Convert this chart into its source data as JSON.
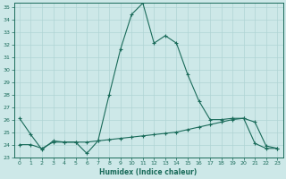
{
  "xlabel": "Humidex (Indice chaleur)",
  "x": [
    0,
    1,
    2,
    3,
    4,
    5,
    6,
    7,
    8,
    9,
    10,
    11,
    12,
    13,
    14,
    15,
    16,
    17,
    18,
    19,
    20,
    21,
    22,
    23
  ],
  "line1_y": [
    26.1,
    24.8,
    23.6,
    24.3,
    24.2,
    24.2,
    23.3,
    24.3,
    28.0,
    31.6,
    34.4,
    35.3,
    32.1,
    32.7,
    32.1,
    29.6,
    27.5,
    26.0,
    26.0,
    26.1,
    26.1,
    24.1,
    23.7,
    23.7
  ],
  "line2_y": [
    24.0,
    24.0,
    23.7,
    24.2,
    24.2,
    24.2,
    24.2,
    24.3,
    24.4,
    24.5,
    24.6,
    24.7,
    24.8,
    24.9,
    25.0,
    25.2,
    25.4,
    25.6,
    25.8,
    26.0,
    26.1,
    25.8,
    23.9,
    23.7
  ],
  "line_color": "#1a6b5a",
  "bg_color": "#cde8e8",
  "grid_color": "#b0d4d4",
  "ylim": [
    23,
    35
  ],
  "xlim": [
    -0.5,
    23.5
  ],
  "yticks": [
    23,
    24,
    25,
    26,
    27,
    28,
    29,
    30,
    31,
    32,
    33,
    34,
    35
  ],
  "xticks": [
    0,
    1,
    2,
    3,
    4,
    5,
    6,
    7,
    8,
    9,
    10,
    11,
    12,
    13,
    14,
    15,
    16,
    17,
    18,
    19,
    20,
    21,
    22,
    23
  ]
}
